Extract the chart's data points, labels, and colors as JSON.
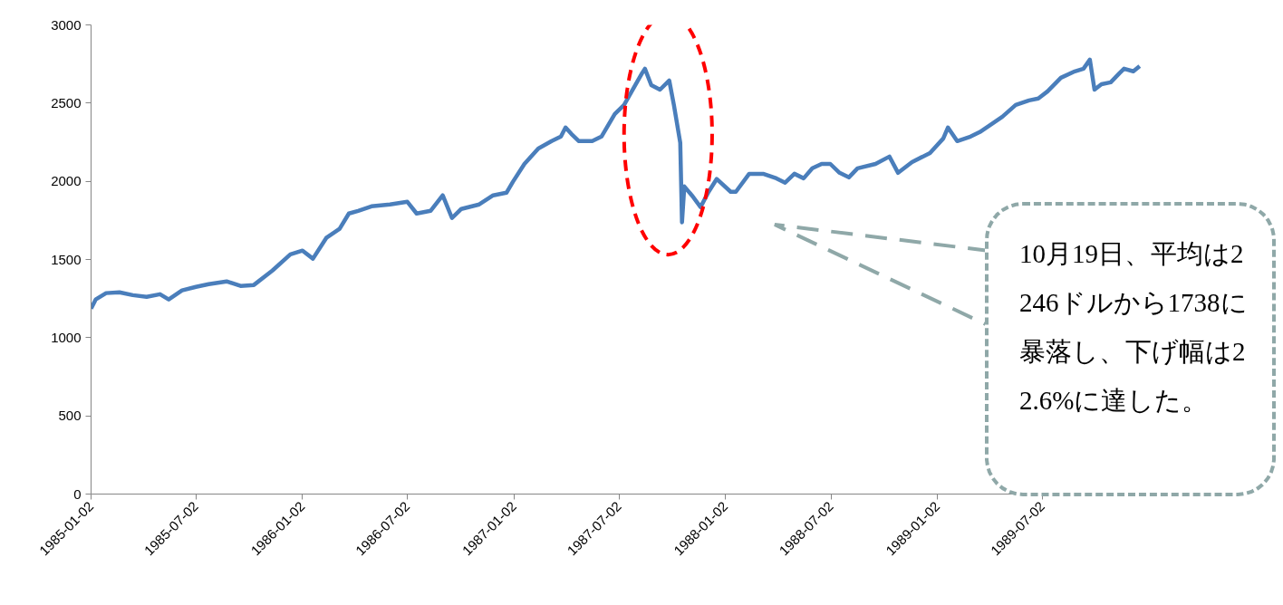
{
  "chart_data": {
    "type": "line",
    "x": [
      "1985-01-02",
      "1985-01-10",
      "1985-01-28",
      "1985-02-20",
      "1985-03-15",
      "1985-04-08",
      "1985-05-01",
      "1985-05-16",
      "1985-06-08",
      "1985-07-02",
      "1985-07-24",
      "1985-08-24",
      "1985-09-17",
      "1985-10-10",
      "1985-11-11",
      "1985-12-12",
      "1986-01-02",
      "1986-01-20",
      "1986-02-12",
      "1986-03-07",
      "1986-03-23",
      "1986-04-08",
      "1986-05-01",
      "1986-06-02",
      "1986-07-02",
      "1986-07-18",
      "1986-08-11",
      "1986-09-01",
      "1986-09-17",
      "1986-10-03",
      "1986-11-03",
      "1986-11-27",
      "1986-12-20",
      "1986-12-31",
      "1987-01-20",
      "1987-02-13",
      "1987-03-08",
      "1987-03-24",
      "1987-04-01",
      "1987-04-11",
      "1987-04-24",
      "1987-05-17",
      "1987-06-02",
      "1987-06-25",
      "1987-07-11",
      "1987-07-26",
      "1987-08-11",
      "1987-08-16",
      "1987-08-27",
      "1987-09-11",
      "1987-09-27",
      "1987-10-05",
      "1987-10-16",
      "1987-10-19",
      "1987-10-23",
      "1987-11-05",
      "1987-11-20",
      "1987-12-04",
      "1987-12-18",
      "1988-01-11",
      "1988-01-20",
      "1988-02-12",
      "1988-03-07",
      "1988-03-30",
      "1988-04-14",
      "1988-04-30",
      "1988-05-16",
      "1988-05-31",
      "1988-06-16",
      "1988-07-01",
      "1988-07-17",
      "1988-08-02",
      "1988-08-17",
      "1988-09-17",
      "1988-10-11",
      "1988-10-26",
      "1988-11-19",
      "1988-12-20",
      "1989-01-12",
      "1989-01-20",
      "1989-02-05",
      "1989-02-28",
      "1989-03-16",
      "1989-04-08",
      "1989-04-24",
      "1989-05-17",
      "1989-06-09",
      "1989-06-25",
      "1989-07-11",
      "1989-08-03",
      "1989-08-27",
      "1989-09-11",
      "1989-09-22",
      "1989-09-30",
      "1989-10-12",
      "1989-10-28",
      "1989-11-12",
      "1989-11-20",
      "1989-12-06",
      "1989-12-17"
    ],
    "series": [
      {
        "color": "#4a7ebb",
        "values": [
          1186,
          1244,
          1285,
          1290,
          1272,
          1261,
          1278,
          1244,
          1302,
          1325,
          1342,
          1360,
          1331,
          1337,
          1429,
          1533,
          1557,
          1505,
          1638,
          1696,
          1794,
          1811,
          1840,
          1852,
          1869,
          1794,
          1811,
          1910,
          1765,
          1823,
          1852,
          1910,
          1927,
          1996,
          2111,
          2210,
          2257,
          2286,
          2344,
          2303,
          2257,
          2257,
          2286,
          2430,
          2488,
          2586,
          2691,
          2720,
          2615,
          2586,
          2644,
          2488,
          2246,
          1738,
          1967,
          1910,
          1835,
          1933,
          2015,
          1933,
          1933,
          2048,
          2048,
          2019,
          1991,
          2048,
          2019,
          2083,
          2111,
          2111,
          2054,
          2025,
          2083,
          2111,
          2158,
          2054,
          2123,
          2181,
          2274,
          2344,
          2257,
          2286,
          2315,
          2372,
          2413,
          2488,
          2517,
          2529,
          2575,
          2662,
          2703,
          2720,
          2778,
          2586,
          2621,
          2633,
          2691,
          2720,
          2703,
          2737
        ]
      }
    ],
    "xlim": [
      "1985-01-02",
      "1989-12-29"
    ],
    "xticks": [
      "1985-01-02",
      "1985-07-02",
      "1986-01-02",
      "1986-07-02",
      "1987-01-02",
      "1987-07-02",
      "1988-01-02",
      "1988-07-02",
      "1989-01-02",
      "1989-07-02"
    ],
    "ylim": [
      0,
      3000
    ],
    "yticks": [
      0,
      500,
      1000,
      1500,
      2000,
      2500,
      3000
    ],
    "grid": false,
    "line_style": "solid",
    "annotations": [
      "10月19日、平均は2246ドルから1738に暴落し、下げ幅は22.6%に達した。"
    ]
  }
}
